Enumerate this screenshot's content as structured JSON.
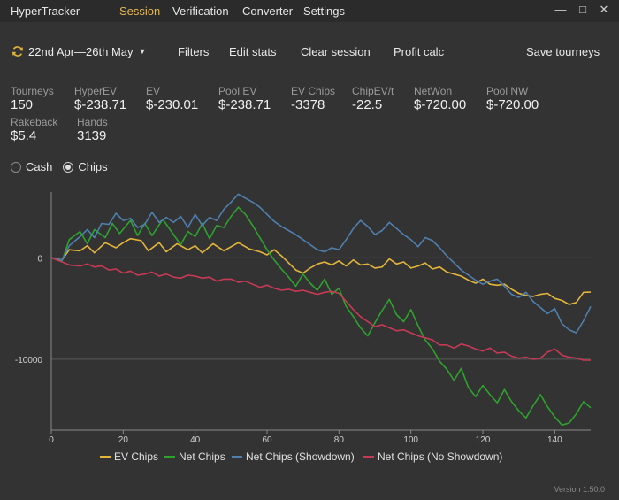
{
  "app": {
    "title": "HyperTracker",
    "version": "Version 1.50.0"
  },
  "menu": [
    "Session",
    "Verification",
    "Converter",
    "Settings"
  ],
  "window_controls": {
    "minimize": "—",
    "maximize": "□",
    "close": "✕"
  },
  "toolbar": {
    "date_range": "22nd Apr—26th May",
    "filters": "Filters",
    "edit_stats": "Edit stats",
    "clear_session": "Clear session",
    "profit_calc": "Profit calc",
    "save_tourneys": "Save tourneys"
  },
  "stats": [
    {
      "label": "Tourneys",
      "value": "150"
    },
    {
      "label": "HyperEV",
      "value": "$-238.71"
    },
    {
      "label": "EV",
      "value": "$-230.01"
    },
    {
      "label": "Pool EV",
      "value": "$-238.71"
    },
    {
      "label": "EV Chips",
      "value": "-3378"
    },
    {
      "label": "ChipEV/t",
      "value": "-22.5"
    },
    {
      "label": "NetWon",
      "value": "$-720.00"
    },
    {
      "label": "Pool NW",
      "value": "$-720.00"
    },
    {
      "label": "Rakeback",
      "value": "$5.4"
    },
    {
      "label": "Hands",
      "value": "3139"
    }
  ],
  "mode": {
    "options": [
      "Cash",
      "Chips"
    ],
    "selected": "Chips"
  },
  "chart_data": {
    "type": "line",
    "xlim": [
      0,
      150
    ],
    "ylim": [
      -17000,
      6500
    ],
    "x_ticks": [
      0,
      20,
      40,
      60,
      80,
      100,
      120,
      140
    ],
    "y_ticks": [
      0,
      -10000
    ],
    "y_tick_labels": [
      "0",
      "-10000"
    ],
    "legend_position": "bottom",
    "grid": "horizontal",
    "series": [
      {
        "name": "EV Chips",
        "color": "#e3b53a",
        "points": [
          [
            0,
            0
          ],
          [
            3,
            -200
          ],
          [
            5,
            800
          ],
          [
            8,
            700
          ],
          [
            10,
            1200
          ],
          [
            12,
            500
          ],
          [
            15,
            1500
          ],
          [
            18,
            1000
          ],
          [
            20,
            1500
          ],
          [
            22,
            1900
          ],
          [
            25,
            1700
          ],
          [
            27,
            700
          ],
          [
            30,
            1500
          ],
          [
            32,
            600
          ],
          [
            35,
            1400
          ],
          [
            38,
            800
          ],
          [
            40,
            1200
          ],
          [
            42,
            500
          ],
          [
            45,
            1400
          ],
          [
            48,
            700
          ],
          [
            52,
            1500
          ],
          [
            55,
            900
          ],
          [
            58,
            600
          ],
          [
            60,
            300
          ],
          [
            62,
            800
          ],
          [
            64,
            200
          ],
          [
            66,
            -500
          ],
          [
            68,
            -1200
          ],
          [
            70,
            -1500
          ],
          [
            72,
            -1000
          ],
          [
            74,
            -600
          ],
          [
            76,
            -400
          ],
          [
            78,
            -700
          ],
          [
            80,
            -300
          ],
          [
            82,
            -800
          ],
          [
            84,
            -200
          ],
          [
            86,
            -700
          ],
          [
            88,
            -600
          ],
          [
            90,
            -1000
          ],
          [
            92,
            -900
          ],
          [
            94,
            -100
          ],
          [
            96,
            -600
          ],
          [
            98,
            -400
          ],
          [
            100,
            -1000
          ],
          [
            102,
            -800
          ],
          [
            104,
            -500
          ],
          [
            106,
            -1100
          ],
          [
            108,
            -900
          ],
          [
            110,
            -1400
          ],
          [
            112,
            -1600
          ],
          [
            114,
            -1800
          ],
          [
            116,
            -2200
          ],
          [
            118,
            -2500
          ],
          [
            120,
            -2100
          ],
          [
            122,
            -2600
          ],
          [
            124,
            -2700
          ],
          [
            126,
            -2600
          ],
          [
            128,
            -3100
          ],
          [
            130,
            -3500
          ],
          [
            132,
            -3700
          ],
          [
            134,
            -3800
          ],
          [
            136,
            -3600
          ],
          [
            138,
            -3500
          ],
          [
            140,
            -4000
          ],
          [
            142,
            -4200
          ],
          [
            144,
            -4600
          ],
          [
            146,
            -4400
          ],
          [
            148,
            -3400
          ],
          [
            150,
            -3378
          ]
        ]
      },
      {
        "name": "Net Chips",
        "color": "#2ea12e",
        "points": [
          [
            0,
            0
          ],
          [
            3,
            -300
          ],
          [
            5,
            1800
          ],
          [
            8,
            2600
          ],
          [
            10,
            1400
          ],
          [
            12,
            2800
          ],
          [
            15,
            2000
          ],
          [
            17,
            3400
          ],
          [
            19,
            2400
          ],
          [
            22,
            3700
          ],
          [
            24,
            2200
          ],
          [
            26,
            3400
          ],
          [
            28,
            2200
          ],
          [
            31,
            3800
          ],
          [
            34,
            2300
          ],
          [
            36,
            1300
          ],
          [
            38,
            2600
          ],
          [
            40,
            2100
          ],
          [
            42,
            3400
          ],
          [
            44,
            1900
          ],
          [
            46,
            3200
          ],
          [
            48,
            3000
          ],
          [
            50,
            4100
          ],
          [
            52,
            5000
          ],
          [
            54,
            4300
          ],
          [
            56,
            3200
          ],
          [
            58,
            2000
          ],
          [
            60,
            800
          ],
          [
            62,
            -200
          ],
          [
            64,
            -1100
          ],
          [
            66,
            -1900
          ],
          [
            68,
            -2800
          ],
          [
            70,
            -1600
          ],
          [
            72,
            -2500
          ],
          [
            74,
            -3200
          ],
          [
            76,
            -2100
          ],
          [
            78,
            -3600
          ],
          [
            80,
            -3000
          ],
          [
            82,
            -4800
          ],
          [
            84,
            -5800
          ],
          [
            86,
            -6900
          ],
          [
            88,
            -7700
          ],
          [
            90,
            -6400
          ],
          [
            92,
            -5200
          ],
          [
            94,
            -4100
          ],
          [
            96,
            -5600
          ],
          [
            98,
            -6300
          ],
          [
            100,
            -5100
          ],
          [
            102,
            -6700
          ],
          [
            104,
            -8100
          ],
          [
            106,
            -9000
          ],
          [
            108,
            -10200
          ],
          [
            110,
            -11000
          ],
          [
            112,
            -12100
          ],
          [
            114,
            -10900
          ],
          [
            116,
            -12800
          ],
          [
            118,
            -13700
          ],
          [
            120,
            -12600
          ],
          [
            122,
            -13500
          ],
          [
            124,
            -14300
          ],
          [
            126,
            -13000
          ],
          [
            128,
            -14200
          ],
          [
            130,
            -15100
          ],
          [
            132,
            -15800
          ],
          [
            134,
            -14600
          ],
          [
            136,
            -13500
          ],
          [
            138,
            -14700
          ],
          [
            140,
            -15700
          ],
          [
            142,
            -16500
          ],
          [
            144,
            -16300
          ],
          [
            146,
            -15400
          ],
          [
            148,
            -14200
          ],
          [
            150,
            -14800
          ]
        ]
      },
      {
        "name": "Net Chips (Showdown)",
        "color": "#4f7fae",
        "points": [
          [
            0,
            0
          ],
          [
            3,
            -200
          ],
          [
            5,
            1200
          ],
          [
            8,
            2100
          ],
          [
            10,
            2800
          ],
          [
            12,
            2000
          ],
          [
            14,
            3400
          ],
          [
            16,
            3300
          ],
          [
            18,
            4400
          ],
          [
            20,
            3700
          ],
          [
            22,
            3900
          ],
          [
            24,
            3000
          ],
          [
            26,
            3300
          ],
          [
            28,
            4500
          ],
          [
            30,
            3500
          ],
          [
            32,
            4000
          ],
          [
            34,
            3500
          ],
          [
            36,
            4100
          ],
          [
            38,
            3000
          ],
          [
            40,
            4300
          ],
          [
            42,
            3200
          ],
          [
            44,
            4000
          ],
          [
            46,
            3700
          ],
          [
            48,
            4800
          ],
          [
            50,
            5500
          ],
          [
            52,
            6300
          ],
          [
            54,
            5900
          ],
          [
            56,
            5500
          ],
          [
            58,
            5000
          ],
          [
            60,
            4300
          ],
          [
            62,
            3600
          ],
          [
            64,
            3100
          ],
          [
            66,
            2700
          ],
          [
            68,
            2300
          ],
          [
            70,
            1800
          ],
          [
            72,
            1300
          ],
          [
            74,
            800
          ],
          [
            76,
            600
          ],
          [
            78,
            1000
          ],
          [
            80,
            800
          ],
          [
            82,
            1800
          ],
          [
            84,
            2900
          ],
          [
            86,
            3700
          ],
          [
            88,
            3100
          ],
          [
            90,
            2300
          ],
          [
            92,
            2700
          ],
          [
            94,
            3500
          ],
          [
            96,
            2900
          ],
          [
            98,
            2300
          ],
          [
            100,
            1800
          ],
          [
            102,
            1100
          ],
          [
            104,
            2000
          ],
          [
            106,
            1700
          ],
          [
            108,
            1000
          ],
          [
            110,
            200
          ],
          [
            112,
            -500
          ],
          [
            114,
            -1200
          ],
          [
            116,
            -1700
          ],
          [
            118,
            -2200
          ],
          [
            120,
            -2600
          ],
          [
            122,
            -2300
          ],
          [
            124,
            -2100
          ],
          [
            126,
            -2800
          ],
          [
            128,
            -3600
          ],
          [
            130,
            -3900
          ],
          [
            132,
            -3400
          ],
          [
            134,
            -4300
          ],
          [
            136,
            -4900
          ],
          [
            138,
            -5500
          ],
          [
            140,
            -5000
          ],
          [
            142,
            -6500
          ],
          [
            144,
            -7100
          ],
          [
            146,
            -7400
          ],
          [
            148,
            -6200
          ],
          [
            150,
            -4800
          ]
        ]
      },
      {
        "name": "Net Chips (No Showdown)",
        "color": "#c63a55",
        "points": [
          [
            0,
            0
          ],
          [
            3,
            -400
          ],
          [
            5,
            -700
          ],
          [
            8,
            -800
          ],
          [
            10,
            -600
          ],
          [
            12,
            -900
          ],
          [
            14,
            -800
          ],
          [
            16,
            -1200
          ],
          [
            18,
            -1100
          ],
          [
            20,
            -1500
          ],
          [
            22,
            -1300
          ],
          [
            24,
            -1700
          ],
          [
            26,
            -1600
          ],
          [
            28,
            -1400
          ],
          [
            30,
            -1800
          ],
          [
            32,
            -1600
          ],
          [
            34,
            -1900
          ],
          [
            36,
            -2000
          ],
          [
            38,
            -1700
          ],
          [
            40,
            -1800
          ],
          [
            42,
            -2000
          ],
          [
            44,
            -1900
          ],
          [
            46,
            -2300
          ],
          [
            48,
            -2100
          ],
          [
            50,
            -2100
          ],
          [
            52,
            -2400
          ],
          [
            54,
            -2300
          ],
          [
            56,
            -2600
          ],
          [
            58,
            -2900
          ],
          [
            60,
            -2700
          ],
          [
            62,
            -3000
          ],
          [
            64,
            -3200
          ],
          [
            66,
            -3100
          ],
          [
            68,
            -3300
          ],
          [
            70,
            -3200
          ],
          [
            72,
            -3400
          ],
          [
            74,
            -3600
          ],
          [
            76,
            -3400
          ],
          [
            78,
            -3300
          ],
          [
            80,
            -3500
          ],
          [
            82,
            -4300
          ],
          [
            84,
            -5100
          ],
          [
            86,
            -5800
          ],
          [
            88,
            -6300
          ],
          [
            90,
            -6800
          ],
          [
            92,
            -6600
          ],
          [
            94,
            -6900
          ],
          [
            96,
            -7200
          ],
          [
            98,
            -7100
          ],
          [
            100,
            -7400
          ],
          [
            102,
            -7700
          ],
          [
            104,
            -7900
          ],
          [
            106,
            -8100
          ],
          [
            108,
            -8600
          ],
          [
            110,
            -8600
          ],
          [
            112,
            -8900
          ],
          [
            114,
            -8500
          ],
          [
            116,
            -8700
          ],
          [
            118,
            -9000
          ],
          [
            120,
            -9200
          ],
          [
            122,
            -8900
          ],
          [
            124,
            -9400
          ],
          [
            126,
            -9300
          ],
          [
            128,
            -9700
          ],
          [
            130,
            -9900
          ],
          [
            132,
            -9800
          ],
          [
            134,
            -10000
          ],
          [
            136,
            -9900
          ],
          [
            138,
            -9300
          ],
          [
            140,
            -9000
          ],
          [
            142,
            -9600
          ],
          [
            144,
            -9800
          ],
          [
            146,
            -9900
          ],
          [
            148,
            -10100
          ],
          [
            150,
            -10100
          ]
        ]
      }
    ]
  }
}
